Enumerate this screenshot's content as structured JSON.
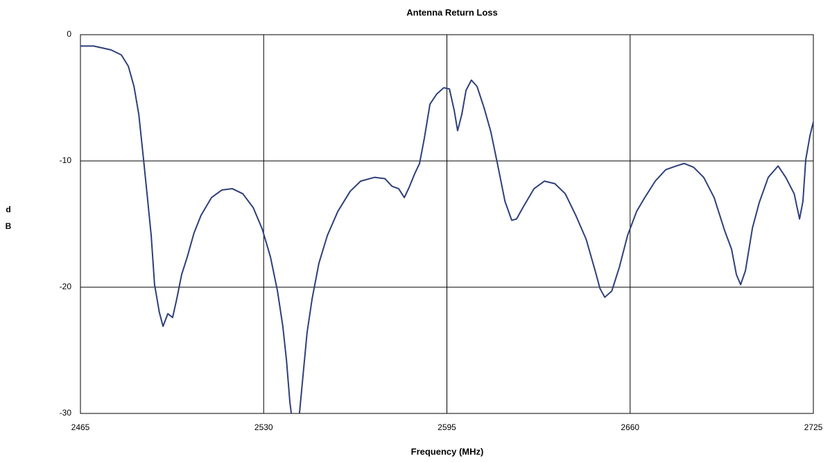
{
  "chart_data": {
    "type": "line",
    "title": "Antenna Return Loss",
    "x_label": "Frequency (MHz)",
    "y_label": "dB",
    "x": [
      2465,
      2469.7,
      2475.8,
      2479.5,
      2482,
      2484,
      2485.7,
      2487.4,
      2488.9,
      2490.1,
      2491.3,
      2493,
      2494.3,
      2496,
      2497.7,
      2499.2,
      2500.9,
      2502.9,
      2505.3,
      2507.8,
      2511.5,
      2515.2,
      2518.9,
      2522.6,
      2526.3,
      2529.5,
      2532.4,
      2534.9,
      2536.8,
      2538.1,
      2539.3,
      2539.8,
      2540.5,
      2542,
      2542.7,
      2544,
      2545.4,
      2547.2,
      2549.6,
      2552.6,
      2556.3,
      2560.7,
      2564.4,
      2569.3,
      2573,
      2575.5,
      2577.9,
      2579.9,
      2581.6,
      2583.6,
      2585.3,
      2587,
      2589,
      2591.4,
      2593.9,
      2595.9,
      2597.6,
      2598.8,
      2600.3,
      2601.8,
      2603.7,
      2605.7,
      2608.2,
      2610.6,
      2613.1,
      2615.6,
      2618,
      2619.7,
      2622.2,
      2625.9,
      2629.6,
      2633.3,
      2637,
      2640.7,
      2644.4,
      2647.6,
      2649.3,
      2651,
      2653.5,
      2656.2,
      2659.1,
      2662.3,
      2665.2,
      2668.9,
      2672.6,
      2676.3,
      2679.2,
      2682.5,
      2686.1,
      2689.8,
      2693.5,
      2696,
      2697.7,
      2699.2,
      2700.9,
      2703.4,
      2705.8,
      2709,
      2712.5,
      2715.2,
      2718.2,
      2720.1,
      2721.3,
      2722.3,
      2723.8,
      2725
    ],
    "series": [
      {
        "name": "Return Loss",
        "color": "#2e3f7a",
        "values": [
          -0.9,
          -0.9,
          -1.2,
          -1.6,
          -2.5,
          -4.1,
          -6.3,
          -9.9,
          -13.2,
          -15.9,
          -19.8,
          -22,
          -23.1,
          -22.1,
          -22.4,
          -20.9,
          -19,
          -17.6,
          -15.7,
          -14.3,
          -12.9,
          -12.3,
          -12.2,
          -12.6,
          -13.7,
          -15.4,
          -17.6,
          -20.3,
          -23.1,
          -25.8,
          -29.1,
          -30,
          -31.5,
          -31,
          -30,
          -26.9,
          -23.6,
          -20.9,
          -18.1,
          -15.9,
          -14,
          -12.4,
          -11.6,
          -11.3,
          -11.4,
          -12,
          -12.2,
          -12.9,
          -12.1,
          -11,
          -10.2,
          -8.2,
          -5.5,
          -4.7,
          -4.2,
          -4.3,
          -6,
          -7.6,
          -6.3,
          -4.4,
          -3.6,
          -4.1,
          -5.8,
          -7.7,
          -10.4,
          -13.2,
          -14.7,
          -14.6,
          -13.6,
          -12.2,
          -11.6,
          -11.8,
          -12.6,
          -14.3,
          -16.2,
          -18.7,
          -20.1,
          -20.8,
          -20.3,
          -18.4,
          -15.9,
          -14,
          -12.9,
          -11.6,
          -10.7,
          -10.4,
          -10.2,
          -10.5,
          -11.3,
          -12.9,
          -15.5,
          -17,
          -19,
          -19.8,
          -18.7,
          -15.3,
          -13.3,
          -11.3,
          -10.4,
          -11.3,
          -12.6,
          -14.6,
          -13.2,
          -9.9,
          -8,
          -6.9
        ]
      }
    ],
    "xlim": [
      2465,
      2725
    ],
    "xticks": [
      2465,
      2530,
      2595,
      2660,
      2725
    ],
    "ylim": [
      -30,
      0
    ],
    "yticks": [
      -30,
      -20,
      -10,
      0
    ],
    "grid": true
  }
}
